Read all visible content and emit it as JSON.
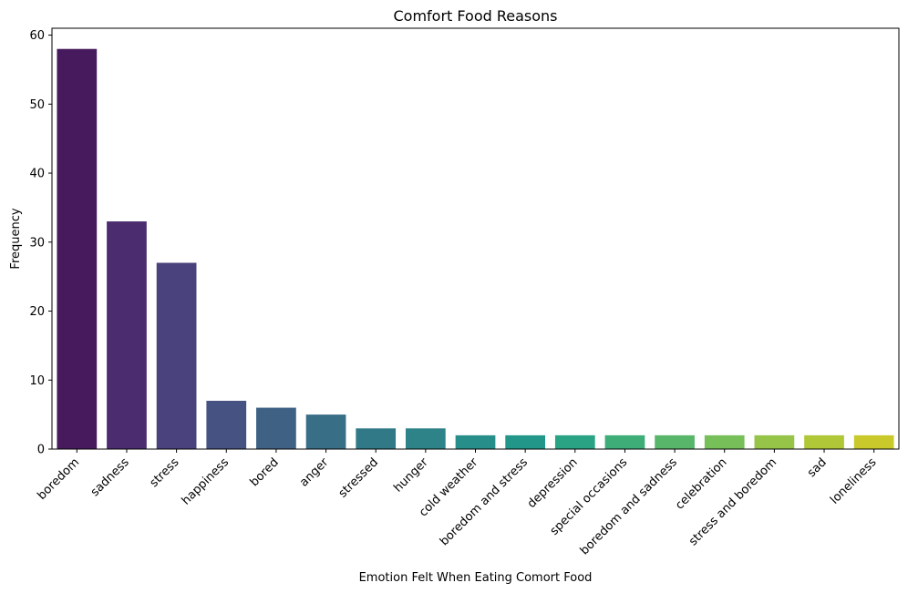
{
  "chart_data": {
    "type": "bar",
    "title": "Comfort Food Reasons",
    "xlabel": "Emotion Felt When Eating Comort Food",
    "ylabel": "Frequency",
    "ylim": [
      0,
      61
    ],
    "yticks": [
      0,
      10,
      20,
      30,
      40,
      50,
      60
    ],
    "grid": false,
    "categories": [
      "boredom",
      "sadness",
      "stress",
      "happiness",
      "bored",
      "anger",
      "stressed",
      "hunger",
      "cold weather",
      "boredom and stress",
      "depression",
      "special occasions",
      "boredom and sadness",
      "celebration",
      "stress and boredom",
      "sad",
      "loneliness"
    ],
    "values": [
      58,
      33,
      27,
      7,
      6,
      5,
      3,
      3,
      2,
      2,
      2,
      2,
      2,
      2,
      2,
      2,
      2
    ],
    "colors": [
      "#471a5d",
      "#4a2c6f",
      "#4a427c",
      "#465281",
      "#3f6184",
      "#386e86",
      "#317987",
      "#2d8388",
      "#288e89",
      "#229789",
      "#2aa284",
      "#3ead78",
      "#58b66a",
      "#76bf59",
      "#95c448",
      "#b0c838",
      "#c9c92b"
    ]
  }
}
